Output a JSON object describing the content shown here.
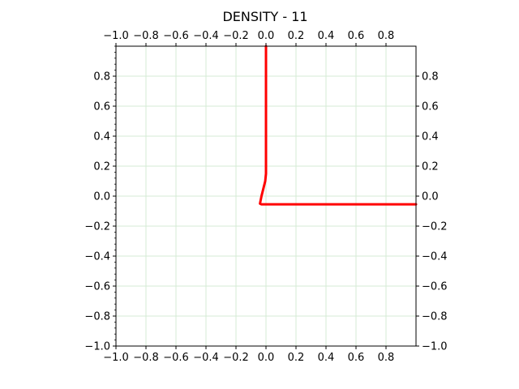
{
  "chart_data": {
    "type": "line",
    "title": "DENSITY - 11",
    "xlabel": "",
    "ylabel": "",
    "xlim": [
      -1.0,
      1.0
    ],
    "ylim": [
      -1.0,
      1.0
    ],
    "grid": true,
    "grid_color": "#d4ebd4",
    "x_ticks": [
      -1.0,
      -0.8,
      -0.6,
      -0.4,
      -0.2,
      0.0,
      0.2,
      0.4,
      0.6,
      0.8
    ],
    "x_tick_labels": [
      "−1.0",
      "−0.8",
      "−0.6",
      "−0.4",
      "−0.2",
      "0.0",
      "0.2",
      "0.4",
      "0.6",
      "0.8"
    ],
    "y_ticks": [
      -1.0,
      -0.8,
      -0.6,
      -0.4,
      -0.2,
      0.0,
      0.2,
      0.4,
      0.6,
      0.8
    ],
    "y_tick_labels": [
      "−1.0",
      "−0.8",
      "−0.6",
      "−0.4",
      "−0.2",
      "0.0",
      "0.2",
      "0.4",
      "0.6",
      "0.8"
    ],
    "series": [
      {
        "color": "#ff0000",
        "x": [
          0.0,
          0.0,
          -0.005,
          -0.03,
          -0.04,
          -0.03,
          0.0,
          0.3,
          0.6,
          1.0
        ],
        "y": [
          1.0,
          0.15,
          0.1,
          0.0,
          -0.05,
          -0.055,
          -0.055,
          -0.055,
          -0.055,
          -0.055
        ]
      }
    ]
  }
}
